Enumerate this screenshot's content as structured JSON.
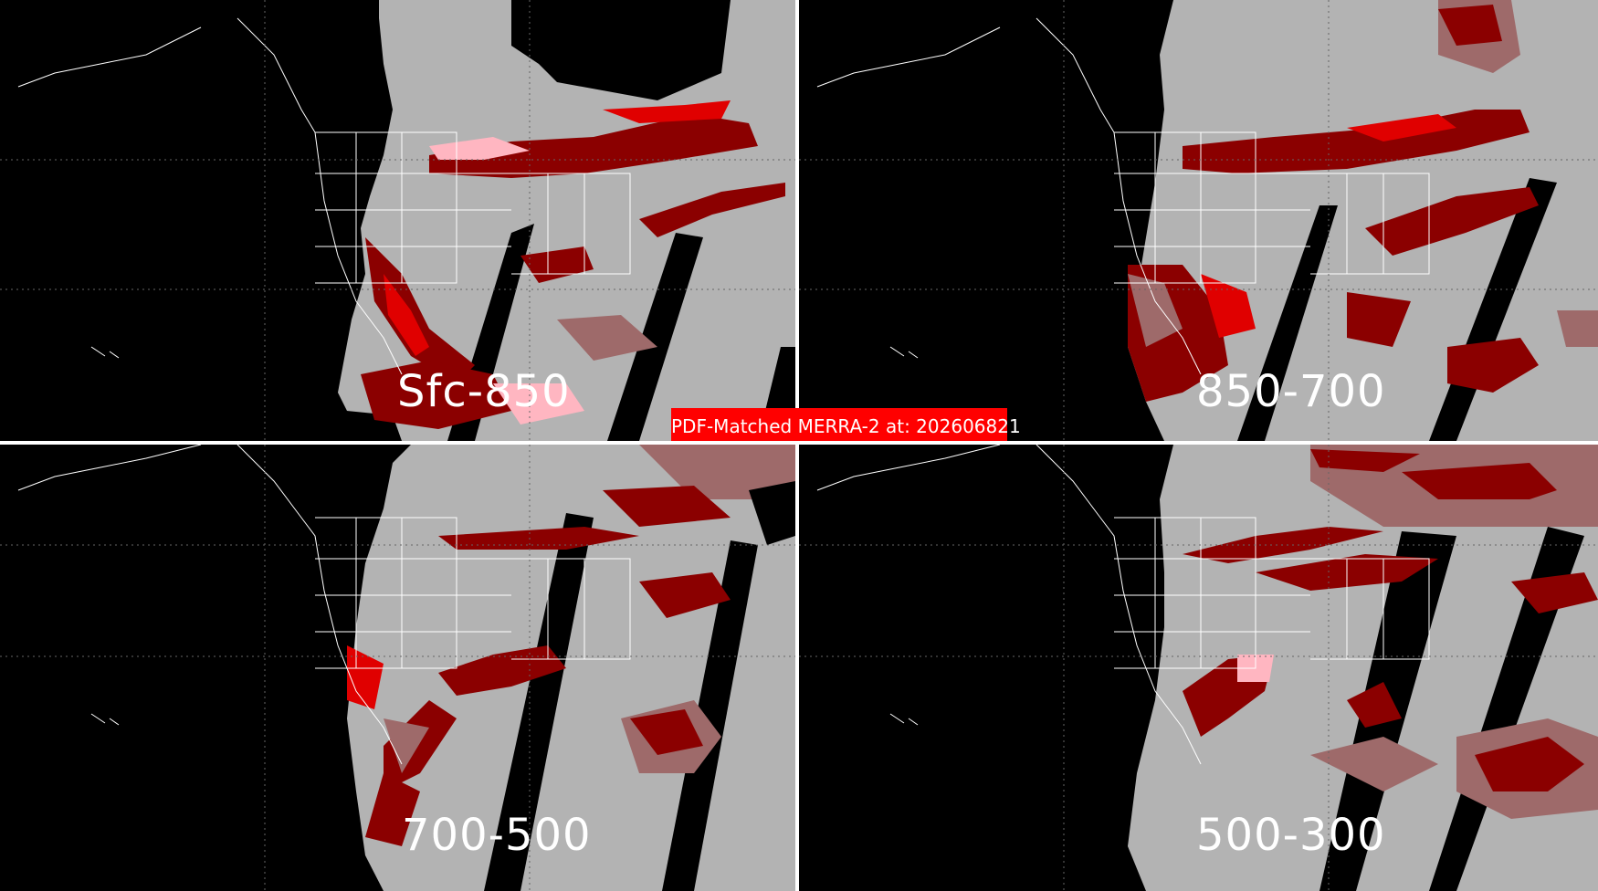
{
  "title": "PDF-Matched MERRA-2 at: 202606821",
  "panels": [
    {
      "label": "Sfc-850"
    },
    {
      "label": "850-700"
    },
    {
      "label": "700-500"
    },
    {
      "label": "500-300"
    }
  ],
  "colors": {
    "background": "#000000",
    "observed_area": "#b3b3b3",
    "category_light": "#9e6a6a",
    "category_medium": "#8b0000",
    "category_strong": "#e00000",
    "category_highlight": "#ffb6c1",
    "coastlines": "#ffffff",
    "banner": "#ff0000"
  }
}
